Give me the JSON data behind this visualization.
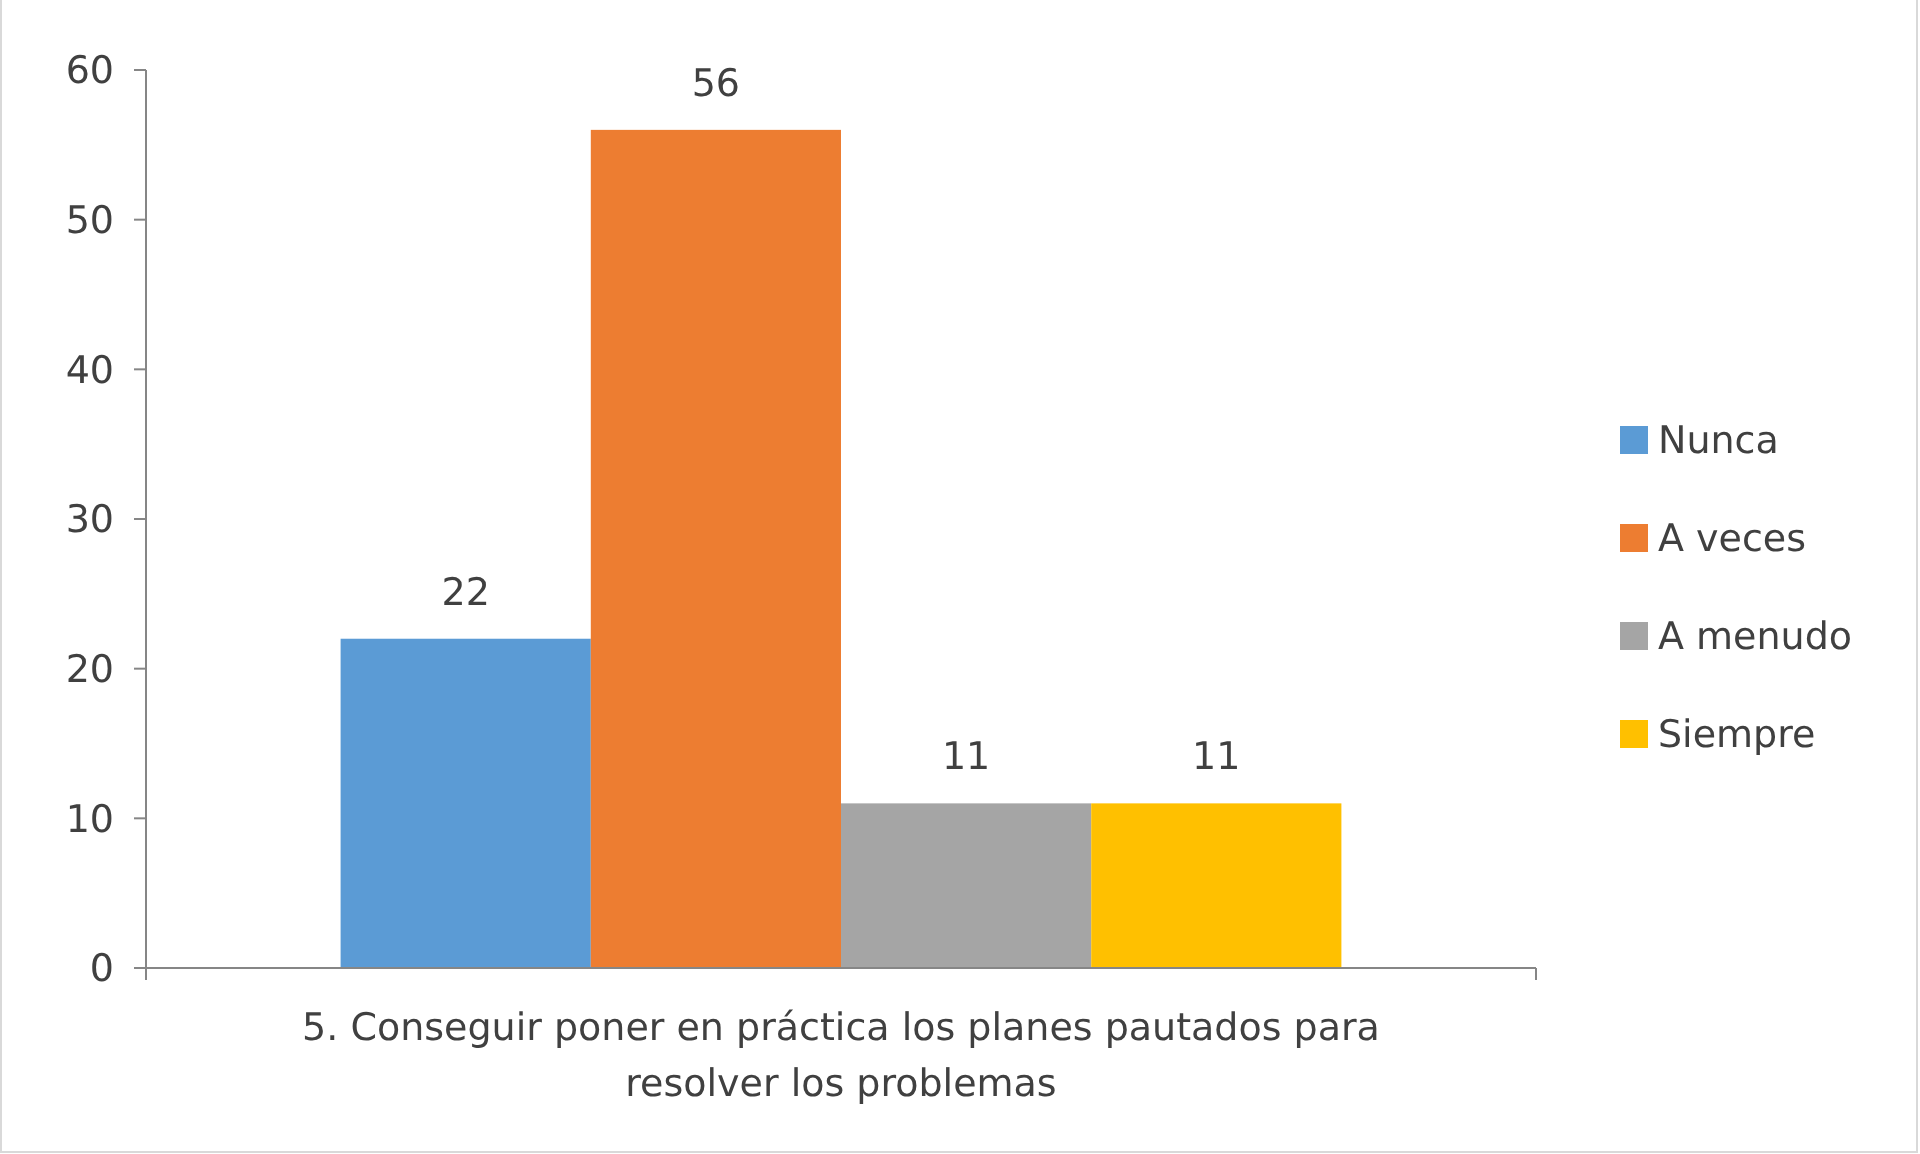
{
  "chart_data": {
    "type": "bar",
    "categories": [
      "5. Conseguir poner en práctica los planes pautados para resolver los problemas"
    ],
    "series": [
      {
        "name": "Nunca",
        "color": "#5b9bd5",
        "values": [
          22
        ]
      },
      {
        "name": "A veces",
        "color": "#ed7d31",
        "values": [
          56
        ]
      },
      {
        "name": "A menudo",
        "color": "#a5a5a5",
        "values": [
          11
        ]
      },
      {
        "name": "Siempre",
        "color": "#ffc000",
        "values": [
          11
        ]
      }
    ],
    "ylim": [
      0,
      60
    ],
    "yticks": [
      0,
      10,
      20,
      30,
      40,
      50,
      60
    ],
    "data_labels": true,
    "grid": false,
    "legend": "right"
  }
}
